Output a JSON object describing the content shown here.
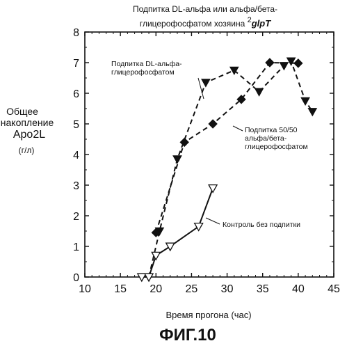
{
  "chart_data": {
    "type": "line",
    "title_line1": "Подпитка DL-альфа или альфа/бета-",
    "title_line2": "глицерофосфатом хозяина",
    "title_superscript": "2",
    "title_gene": "glpT",
    "xlabel": "Время прогона (час)",
    "ylabel_lines": [
      "Общее",
      "накопление",
      "Apo2L",
      "(г/л)"
    ],
    "xlim": [
      10,
      45
    ],
    "ylim": [
      0,
      8
    ],
    "xticks": [
      10,
      15,
      20,
      25,
      30,
      35,
      40,
      45
    ],
    "yticks": [
      0,
      1,
      2,
      3,
      4,
      5,
      6,
      7,
      8
    ],
    "grid": false,
    "series": [
      {
        "name": "Подпитка DL-альфа-глицерофосфатом",
        "label_lines": [
          "Подпитка DL-альфа-",
          "глицерофосфатом"
        ],
        "marker": "triangle-down-filled",
        "line_style": "dashed",
        "color": "#111111",
        "x": [
          19,
          20.5,
          23,
          27,
          31,
          34.5,
          38,
          39,
          41,
          42
        ],
        "y": [
          0,
          1.5,
          3.85,
          6.35,
          6.75,
          6.05,
          6.9,
          7.05,
          5.75,
          5.4
        ]
      },
      {
        "name": "Подпитка 50/50 альфа/бета-глицерофосфатом",
        "label_lines": [
          "Подпитка 50/50",
          "альфа/бета-",
          "глицерофосфатом"
        ],
        "marker": "diamond-filled",
        "line_style": "dashed",
        "color": "#111111",
        "x": [
          20,
          24,
          28,
          32,
          36,
          40
        ],
        "y": [
          1.45,
          4.4,
          5.0,
          5.8,
          7.0,
          6.98
        ]
      },
      {
        "name": "Контроль без подпитки",
        "label_lines": [
          "Контроль без подпитки"
        ],
        "marker": "triangle-down-open",
        "line_style": "solid",
        "color": "#111111",
        "x": [
          18,
          19,
          20,
          22,
          26,
          28
        ],
        "y": [
          0,
          0,
          0.7,
          1.0,
          1.65,
          2.9
        ]
      }
    ],
    "figure_caption": "ФИГ.10"
  }
}
